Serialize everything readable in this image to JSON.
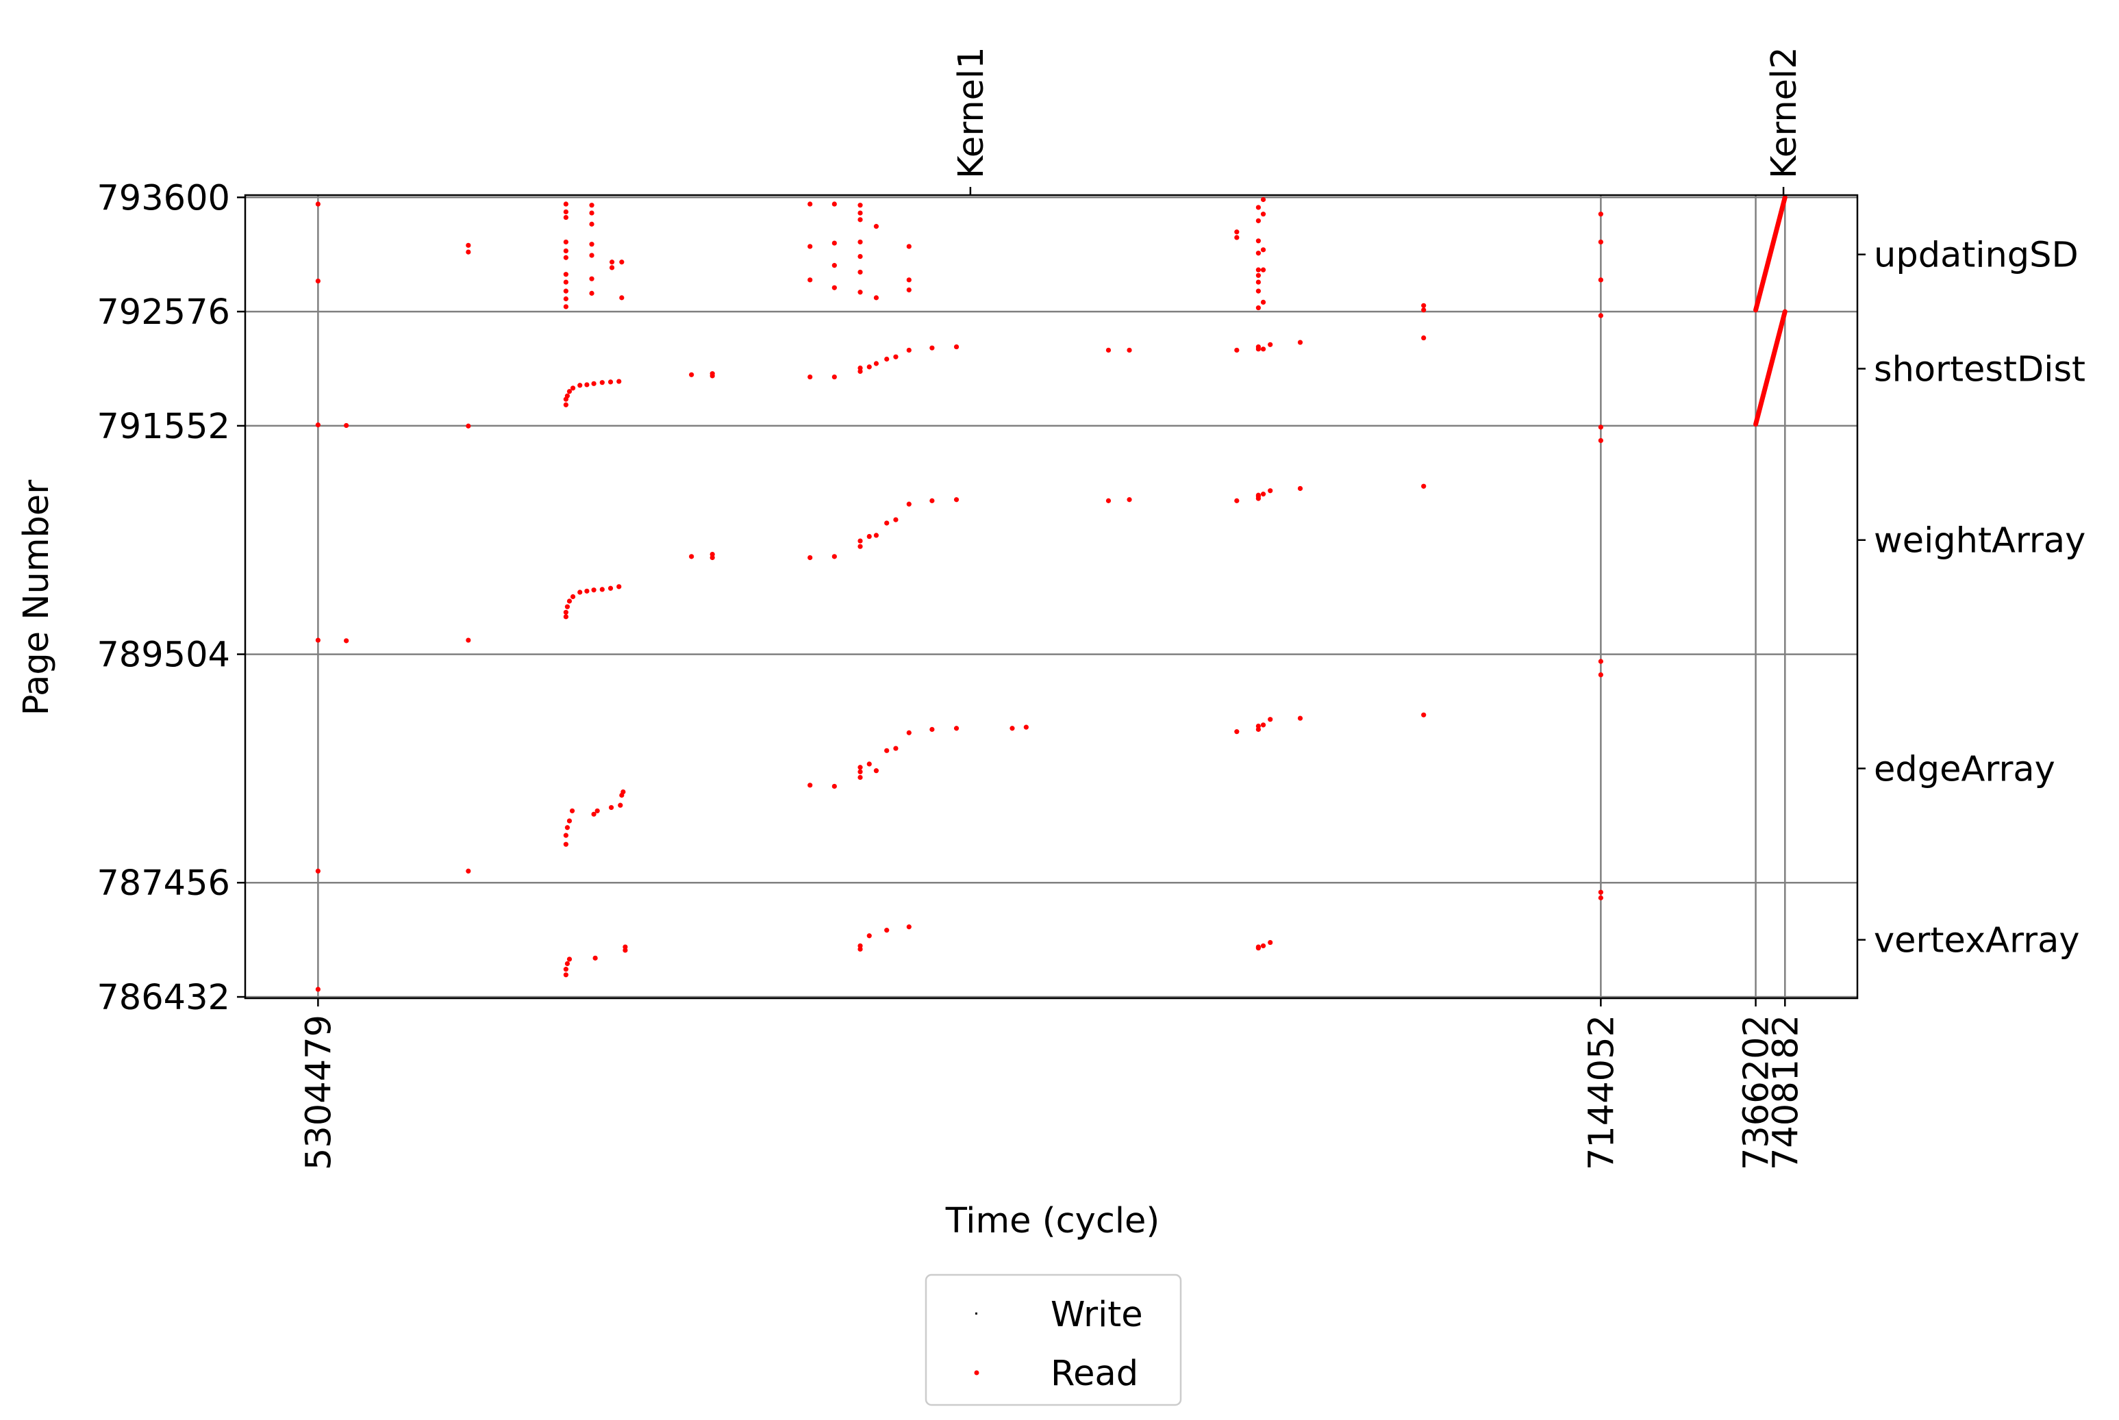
{
  "chart_data": {
    "type": "scatter",
    "xlabel": "Time (cycle)",
    "ylabel": "Page Number",
    "xlim": [
      5200000,
      7512000
    ],
    "ylim": [
      786420,
      793620
    ],
    "grid": true,
    "x_ticks": [
      {
        "value": 5304479,
        "label": "5304479"
      },
      {
        "value": 7144052,
        "label": "7144052"
      },
      {
        "value": 7366202,
        "label": "7366202"
      },
      {
        "value": 7408182,
        "label": "7408182"
      }
    ],
    "y_ticks": [
      {
        "value": 786432,
        "label": "786432"
      },
      {
        "value": 787456,
        "label": "787456"
      },
      {
        "value": 789504,
        "label": "789504"
      },
      {
        "value": 791552,
        "label": "791552"
      },
      {
        "value": 792576,
        "label": "792576"
      },
      {
        "value": 793600,
        "label": "793600"
      }
    ],
    "top_markers": [
      {
        "value": 6240000,
        "label": "Kernel1"
      },
      {
        "value": 7406000,
        "label": "Kernel2"
      }
    ],
    "right_labels": [
      {
        "value": 793088,
        "label": "updatingSD"
      },
      {
        "value": 792064,
        "label": "shortestDist"
      },
      {
        "value": 790528,
        "label": "weightArray"
      },
      {
        "value": 788480,
        "label": "edgeArray"
      },
      {
        "value": 786944,
        "label": "vertexArray"
      }
    ],
    "legend": {
      "placement": "below",
      "items": [
        {
          "name": "Write",
          "color": "#000000"
        },
        {
          "name": "Read",
          "color": "#ff0000"
        }
      ]
    },
    "series": [
      {
        "name": "Write",
        "color": "#000000",
        "points": []
      },
      {
        "name": "Read",
        "color": "#ff0000",
        "points": [
          [
            5304479,
            793540
          ],
          [
            5304479,
            792850
          ],
          [
            5304479,
            791560
          ],
          [
            5304479,
            789630
          ],
          [
            5304479,
            787560
          ],
          [
            5304479,
            786500
          ],
          [
            5345000,
            791555
          ],
          [
            5345000,
            789625
          ],
          [
            5520000,
            793170
          ],
          [
            5520000,
            793110
          ],
          [
            5520000,
            791550
          ],
          [
            5520000,
            789630
          ],
          [
            5520000,
            787560
          ],
          [
            5660000,
            793540
          ],
          [
            5660000,
            793470
          ],
          [
            5660000,
            793420
          ],
          [
            5660000,
            793200
          ],
          [
            5660000,
            793120
          ],
          [
            5660000,
            793060
          ],
          [
            5660000,
            792910
          ],
          [
            5660000,
            792840
          ],
          [
            5660000,
            792760
          ],
          [
            5660000,
            792690
          ],
          [
            5660000,
            792620
          ],
          [
            5697000,
            793530
          ],
          [
            5697000,
            793460
          ],
          [
            5697000,
            793360
          ],
          [
            5697000,
            793180
          ],
          [
            5697000,
            793080
          ],
          [
            5697000,
            792870
          ],
          [
            5697000,
            792740
          ],
          [
            5726000,
            793020
          ],
          [
            5726000,
            792970
          ],
          [
            5740000,
            793020
          ],
          [
            5740000,
            792700
          ],
          [
            5660000,
            791740
          ],
          [
            5660000,
            791790
          ],
          [
            5662000,
            791820
          ],
          [
            5665000,
            791860
          ],
          [
            5670000,
            791890
          ],
          [
            5680000,
            791915
          ],
          [
            5690000,
            791920
          ],
          [
            5700000,
            791930
          ],
          [
            5712000,
            791940
          ],
          [
            5724000,
            791945
          ],
          [
            5736000,
            791950
          ],
          [
            5660000,
            789840
          ],
          [
            5660000,
            789880
          ],
          [
            5662000,
            789930
          ],
          [
            5665000,
            789980
          ],
          [
            5670000,
            790020
          ],
          [
            5680000,
            790060
          ],
          [
            5690000,
            790070
          ],
          [
            5700000,
            790080
          ],
          [
            5712000,
            790085
          ],
          [
            5724000,
            790095
          ],
          [
            5736000,
            790110
          ],
          [
            5660000,
            787800
          ],
          [
            5660000,
            787880
          ],
          [
            5662000,
            787950
          ],
          [
            5665000,
            788010
          ],
          [
            5669000,
            788100
          ],
          [
            5700000,
            788070
          ],
          [
            5705000,
            788100
          ],
          [
            5725000,
            788130
          ],
          [
            5738000,
            788150
          ],
          [
            5740000,
            788240
          ],
          [
            5742000,
            788270
          ],
          [
            5660000,
            786630
          ],
          [
            5660000,
            786680
          ],
          [
            5662000,
            786730
          ],
          [
            5665000,
            786770
          ],
          [
            5702000,
            786780
          ],
          [
            5745000,
            786850
          ],
          [
            5745000,
            786880
          ],
          [
            5840000,
            790380
          ],
          [
            5870000,
            790400
          ],
          [
            5870000,
            790370
          ],
          [
            5840000,
            792010
          ],
          [
            5870000,
            792020
          ],
          [
            5870000,
            792000
          ],
          [
            6010000,
            793540
          ],
          [
            6010000,
            793160
          ],
          [
            6010000,
            792860
          ],
          [
            6010000,
            791990
          ],
          [
            6010000,
            790370
          ],
          [
            6010000,
            788330
          ],
          [
            6045000,
            793540
          ],
          [
            6045000,
            793190
          ],
          [
            6045000,
            792990
          ],
          [
            6045000,
            792790
          ],
          [
            6045000,
            791990
          ],
          [
            6045000,
            790380
          ],
          [
            6045000,
            788320
          ],
          [
            6082000,
            793530
          ],
          [
            6082000,
            793460
          ],
          [
            6082000,
            793400
          ],
          [
            6082000,
            793200
          ],
          [
            6082000,
            793070
          ],
          [
            6082000,
            792930
          ],
          [
            6082000,
            792750
          ],
          [
            6082000,
            792040
          ],
          [
            6082000,
            792070
          ],
          [
            6082000,
            790470
          ],
          [
            6082000,
            790520
          ],
          [
            6082000,
            788400
          ],
          [
            6082000,
            788450
          ],
          [
            6082000,
            788490
          ],
          [
            6082000,
            786890
          ],
          [
            6082000,
            786860
          ],
          [
            6095000,
            792080
          ],
          [
            6095000,
            790560
          ],
          [
            6095000,
            788520
          ],
          [
            6095000,
            786980
          ],
          [
            6105000,
            793340
          ],
          [
            6105000,
            792700
          ],
          [
            6105000,
            792110
          ],
          [
            6105000,
            790570
          ],
          [
            6105000,
            788460
          ],
          [
            6120000,
            792150
          ],
          [
            6120000,
            790680
          ],
          [
            6120000,
            788640
          ],
          [
            6120000,
            787030
          ],
          [
            6133000,
            792170
          ],
          [
            6133000,
            790710
          ],
          [
            6133000,
            788660
          ],
          [
            6152000,
            793160
          ],
          [
            6152000,
            792860
          ],
          [
            6152000,
            792770
          ],
          [
            6152000,
            792230
          ],
          [
            6152000,
            790850
          ],
          [
            6152000,
            788800
          ],
          [
            6152000,
            787060
          ],
          [
            6185000,
            792250
          ],
          [
            6185000,
            790880
          ],
          [
            6185000,
            788830
          ],
          [
            6220000,
            792260
          ],
          [
            6220000,
            790890
          ],
          [
            6220000,
            788840
          ],
          [
            6300000,
            788840
          ],
          [
            6320000,
            788850
          ],
          [
            6438000,
            792230
          ],
          [
            6468000,
            792230
          ],
          [
            6438000,
            790880
          ],
          [
            6468000,
            790890
          ],
          [
            6622000,
            793290
          ],
          [
            6622000,
            793240
          ],
          [
            6622000,
            792230
          ],
          [
            6622000,
            790880
          ],
          [
            6622000,
            788810
          ],
          [
            6653000,
            793510
          ],
          [
            6653000,
            793390
          ],
          [
            6653000,
            793210
          ],
          [
            6653000,
            793100
          ],
          [
            6653000,
            792950
          ],
          [
            6653000,
            792900
          ],
          [
            6653000,
            792840
          ],
          [
            6653000,
            792760
          ],
          [
            6653000,
            792610
          ],
          [
            6653000,
            792240
          ],
          [
            6653000,
            792260
          ],
          [
            6653000,
            790920
          ],
          [
            6653000,
            790930
          ],
          [
            6653000,
            790900
          ],
          [
            6653000,
            788860
          ],
          [
            6653000,
            788830
          ],
          [
            6653000,
            786880
          ],
          [
            6653000,
            786870
          ],
          [
            6660000,
            793580
          ],
          [
            6660000,
            793450
          ],
          [
            6660000,
            793130
          ],
          [
            6660000,
            792950
          ],
          [
            6660000,
            792660
          ],
          [
            6660000,
            792240
          ],
          [
            6660000,
            790940
          ],
          [
            6660000,
            788870
          ],
          [
            6660000,
            786890
          ],
          [
            6670000,
            792280
          ],
          [
            6670000,
            790970
          ],
          [
            6670000,
            788920
          ],
          [
            6670000,
            786920
          ],
          [
            6713000,
            792300
          ],
          [
            6713000,
            790990
          ],
          [
            6713000,
            788930
          ],
          [
            6890000,
            792630
          ],
          [
            6890000,
            792590
          ],
          [
            6890000,
            792340
          ],
          [
            6890000,
            791010
          ],
          [
            6890000,
            788960
          ],
          [
            7144052,
            793450
          ],
          [
            7144052,
            793200
          ],
          [
            7144052,
            792860
          ],
          [
            7144052,
            792540
          ],
          [
            7144052,
            791540
          ],
          [
            7144052,
            791420
          ],
          [
            7144052,
            789440
          ],
          [
            7144052,
            789320
          ],
          [
            7144052,
            787370
          ],
          [
            7144052,
            787320
          ]
        ]
      }
    ],
    "lines": [
      {
        "series": "Read",
        "color": "#ff0000",
        "from": [
          7366202,
          792590
        ],
        "to": [
          7408182,
          793600
        ]
      },
      {
        "series": "Read",
        "color": "#ff0000",
        "from": [
          7366202,
          791566
        ],
        "to": [
          7408182,
          792576
        ]
      }
    ]
  }
}
